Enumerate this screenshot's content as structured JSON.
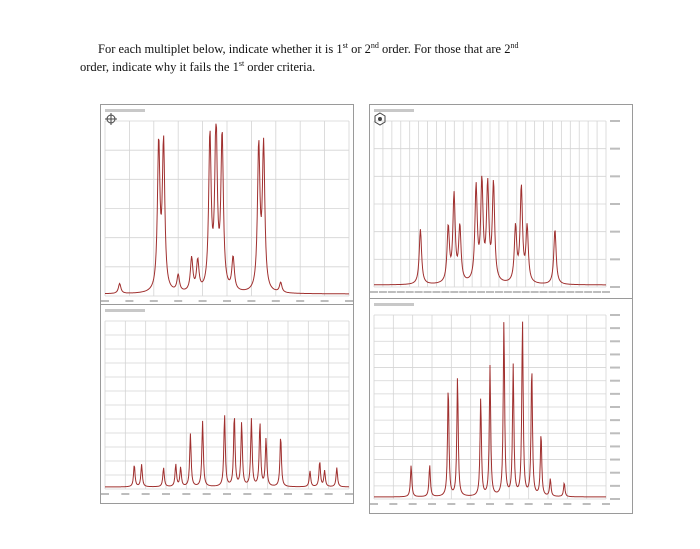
{
  "question": {
    "line1_a": "For each multiplet below, indicate whether it is 1",
    "sup1": "st",
    "line1_b": " or 2",
    "sup2": "nd",
    "line1_c": " order. For those that are 2",
    "sup3": "nd",
    "line2_a": "order, indicate why it fails the 1",
    "sup4": "st",
    "line2_b": " order criteria."
  },
  "colors": {
    "spectrum_line": "#a0302f",
    "grid": "#d4d4d4",
    "frame": "#9a9a9a",
    "text": "#111111"
  },
  "icons": {
    "panel_1": "crosshair-target-icon",
    "panel_2": "hexagon-badge-icon"
  },
  "chart_data": [
    {
      "type": "line",
      "position": "top-left",
      "x": [],
      "peaks": [
        {
          "x": 0.06,
          "h": 0.06
        },
        {
          "x": 0.22,
          "h": 0.88
        },
        {
          "x": 0.24,
          "h": 0.88
        },
        {
          "x": 0.3,
          "h": 0.1
        },
        {
          "x": 0.355,
          "h": 0.2
        },
        {
          "x": 0.38,
          "h": 0.18
        },
        {
          "x": 0.43,
          "h": 0.92
        },
        {
          "x": 0.455,
          "h": 1.0
        },
        {
          "x": 0.48,
          "h": 0.92
        },
        {
          "x": 0.525,
          "h": 0.2
        },
        {
          "x": 0.63,
          "h": 0.86
        },
        {
          "x": 0.65,
          "h": 0.86
        },
        {
          "x": 0.72,
          "h": 0.06
        }
      ],
      "grid": true
    },
    {
      "type": "line",
      "position": "top-right",
      "peaks": [
        {
          "x": 0.2,
          "h": 0.35
        },
        {
          "x": 0.32,
          "h": 0.35
        },
        {
          "x": 0.345,
          "h": 0.55
        },
        {
          "x": 0.37,
          "h": 0.35
        },
        {
          "x": 0.44,
          "h": 0.6
        },
        {
          "x": 0.465,
          "h": 0.62
        },
        {
          "x": 0.49,
          "h": 0.6
        },
        {
          "x": 0.515,
          "h": 0.62
        },
        {
          "x": 0.61,
          "h": 0.35
        },
        {
          "x": 0.635,
          "h": 0.6
        },
        {
          "x": 0.66,
          "h": 0.35
        },
        {
          "x": 0.78,
          "h": 0.35
        }
      ],
      "grid": true
    },
    {
      "type": "line",
      "position": "bottom-left",
      "peaks": [
        {
          "x": 0.12,
          "h": 0.14
        },
        {
          "x": 0.15,
          "h": 0.14
        },
        {
          "x": 0.24,
          "h": 0.12
        },
        {
          "x": 0.29,
          "h": 0.14
        },
        {
          "x": 0.31,
          "h": 0.12
        },
        {
          "x": 0.35,
          "h": 0.33
        },
        {
          "x": 0.4,
          "h": 0.41
        },
        {
          "x": 0.49,
          "h": 0.45
        },
        {
          "x": 0.53,
          "h": 0.45
        },
        {
          "x": 0.56,
          "h": 0.4
        },
        {
          "x": 0.6,
          "h": 0.42
        },
        {
          "x": 0.635,
          "h": 0.4
        },
        {
          "x": 0.66,
          "h": 0.3
        },
        {
          "x": 0.72,
          "h": 0.32
        },
        {
          "x": 0.84,
          "h": 0.1
        },
        {
          "x": 0.88,
          "h": 0.16
        },
        {
          "x": 0.9,
          "h": 0.1
        },
        {
          "x": 0.95,
          "h": 0.12
        }
      ],
      "grid": true
    },
    {
      "type": "line",
      "position": "bottom-right",
      "peaks": [
        {
          "x": 0.16,
          "h": 0.18
        },
        {
          "x": 0.24,
          "h": 0.18
        },
        {
          "x": 0.32,
          "h": 0.63
        },
        {
          "x": 0.36,
          "h": 0.68
        },
        {
          "x": 0.46,
          "h": 0.56
        },
        {
          "x": 0.5,
          "h": 0.74
        },
        {
          "x": 0.56,
          "h": 1.0
        },
        {
          "x": 0.6,
          "h": 0.74
        },
        {
          "x": 0.64,
          "h": 1.0
        },
        {
          "x": 0.68,
          "h": 0.74
        },
        {
          "x": 0.72,
          "h": 0.36
        },
        {
          "x": 0.76,
          "h": 0.1
        },
        {
          "x": 0.82,
          "h": 0.08
        }
      ],
      "grid": true
    }
  ]
}
